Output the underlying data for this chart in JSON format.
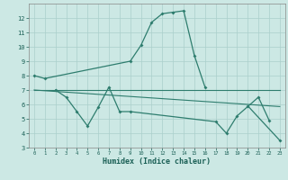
{
  "xlabel": "Humidex (Indice chaleur)",
  "x": [
    0,
    1,
    2,
    3,
    4,
    5,
    6,
    7,
    8,
    9,
    10,
    11,
    12,
    13,
    14,
    15,
    16,
    17,
    18,
    19,
    20,
    21,
    22,
    23
  ],
  "line1": [
    8.0,
    7.8,
    null,
    null,
    null,
    null,
    null,
    null,
    null,
    9.0,
    10.1,
    11.7,
    12.3,
    12.4,
    12.5,
    9.4,
    7.2,
    null,
    null,
    null,
    null,
    null,
    null,
    null
  ],
  "line2": [
    null,
    null,
    7.0,
    6.5,
    5.5,
    4.5,
    5.8,
    7.2,
    5.5,
    5.5,
    null,
    null,
    null,
    null,
    null,
    null,
    null,
    4.8,
    4.0,
    5.2,
    null,
    6.5,
    4.9,
    null
  ],
  "line3": [
    null,
    null,
    null,
    null,
    null,
    null,
    null,
    null,
    null,
    null,
    null,
    null,
    null,
    null,
    null,
    null,
    null,
    null,
    null,
    null,
    5.9,
    null,
    null,
    3.5
  ],
  "line_flat1": [
    7.0,
    7.0,
    7.0,
    7.0,
    7.0,
    7.0,
    7.0,
    7.0,
    7.0,
    7.0,
    7.0,
    7.0,
    7.0,
    7.0,
    7.0,
    7.0,
    7.0,
    7.0,
    7.0,
    7.0,
    7.0,
    7.0,
    7.0,
    7.0
  ],
  "line_flat2": [
    7.0,
    6.95,
    6.9,
    6.85,
    6.8,
    6.75,
    6.7,
    6.65,
    6.6,
    6.55,
    6.5,
    6.45,
    6.4,
    6.35,
    6.3,
    6.25,
    6.2,
    6.15,
    6.1,
    6.05,
    6.0,
    5.95,
    5.9,
    5.85
  ],
  "color": "#2e7d6e",
  "bg_color": "#cce8e4",
  "grid_color": "#aacfcb",
  "ylim": [
    3,
    13
  ],
  "xlim": [
    -0.5,
    23.5
  ],
  "yticks": [
    3,
    4,
    5,
    6,
    7,
    8,
    9,
    10,
    11,
    12
  ],
  "xticks": [
    0,
    1,
    2,
    3,
    4,
    5,
    6,
    7,
    8,
    9,
    10,
    11,
    12,
    13,
    14,
    15,
    16,
    17,
    18,
    19,
    20,
    21,
    22,
    23
  ]
}
